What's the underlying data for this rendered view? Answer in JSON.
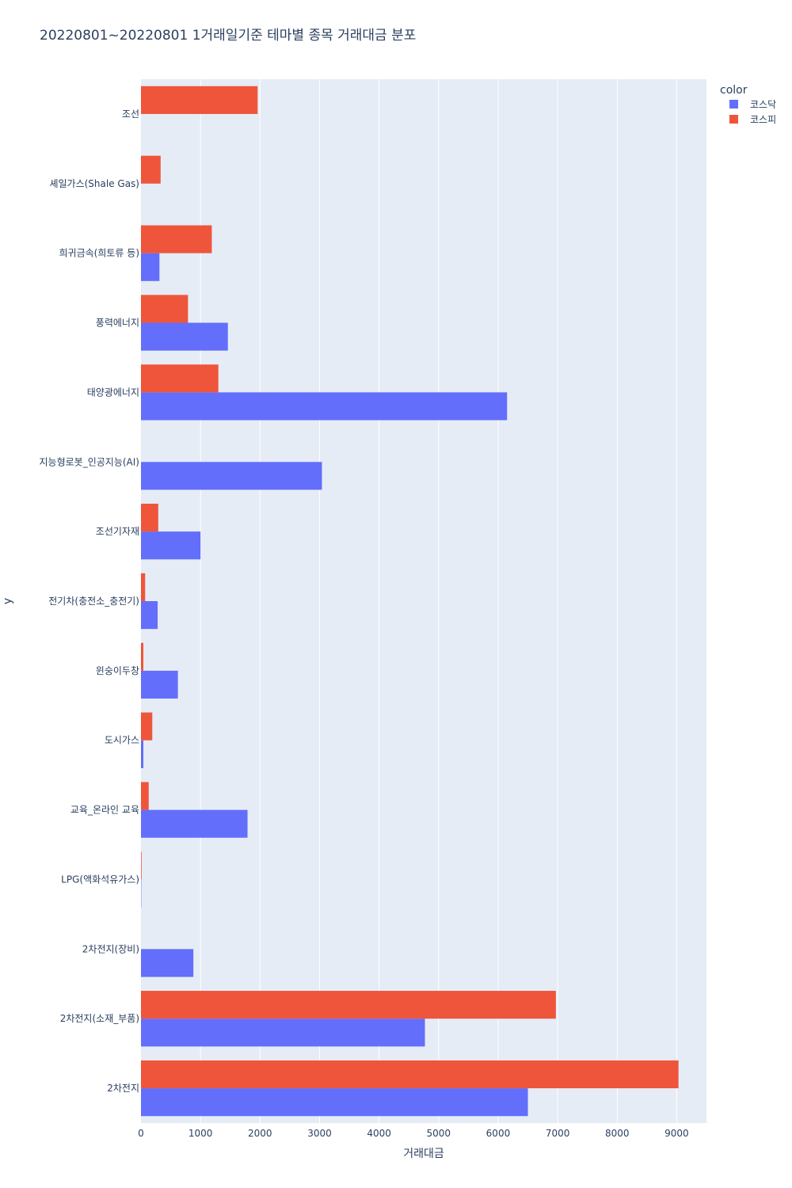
{
  "chart_data": {
    "type": "bar",
    "orientation": "horizontal",
    "title": "20220801~20220801 1거래일기준 테마별 종목 거래대금 분포",
    "xlabel": "거래대금",
    "ylabel": "y",
    "xlim": [
      0,
      9500
    ],
    "xticks": [
      0,
      1000,
      2000,
      3000,
      4000,
      5000,
      6000,
      7000,
      8000,
      9000
    ],
    "grid": true,
    "legend_title": "color",
    "legend_position": "top-right",
    "categories": [
      "조선",
      "셰일가스(Shale Gas)",
      "희귀금속(희토류 등)",
      "풍력에너지",
      "태양광에너지",
      "지능형로봇_인공지능(AI)",
      "조선기자재",
      "전기차(충전소_충전기)",
      "윈숭이두창",
      "도시가스",
      "교육_온라인 교육",
      "LPG(액화석유가스)",
      "2차전지(장비)",
      "2차전지(소재_부품)",
      "2차전지"
    ],
    "series": [
      {
        "name": "코스닥",
        "color": "#636efa",
        "values": [
          0,
          0,
          310,
          1460,
          6150,
          3040,
          1000,
          280,
          620,
          40,
          1790,
          5,
          880,
          4770,
          6500
        ]
      },
      {
        "name": "코스피",
        "color": "#ef553b",
        "values": [
          1960,
          330,
          1190,
          790,
          1300,
          0,
          290,
          70,
          40,
          190,
          130,
          10,
          0,
          6970,
          9030
        ]
      }
    ]
  }
}
